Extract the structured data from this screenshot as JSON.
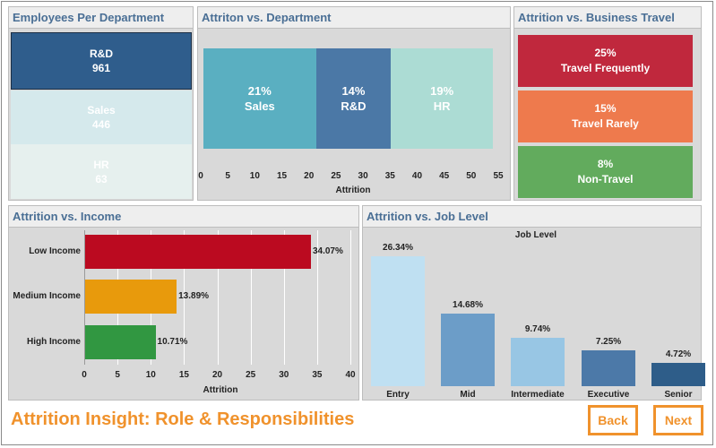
{
  "footer": {
    "title": "Attrition Insight: Role & Responsibilities",
    "back_label": "Back",
    "next_label": "Next"
  },
  "employees_panel": {
    "title": "Employees Per Department",
    "tiles": [
      {
        "name": "R&D",
        "value": "961",
        "color": "#2f5d8c"
      },
      {
        "name": "Sales",
        "value": "446",
        "color": "#d5e9ec"
      },
      {
        "name": "HR",
        "value": "63",
        "color": "#e6f0ee"
      }
    ]
  },
  "chart_data": [
    {
      "type": "treemap",
      "title": "Attriton vs. Department",
      "xlabel": "Attrition",
      "ticks": [
        0,
        5,
        10,
        15,
        20,
        25,
        30,
        35,
        40,
        45,
        50,
        55
      ],
      "xlim": [
        0,
        55
      ],
      "segments": [
        {
          "pct": "21%",
          "label": "Sales",
          "value": 21,
          "color": "#5aafc1"
        },
        {
          "pct": "14%",
          "label": "R&D",
          "value": 14,
          "color": "#4b78a6"
        },
        {
          "pct": "19%",
          "label": "HR",
          "value": 19,
          "color": "#acdcd4"
        }
      ]
    },
    {
      "type": "table",
      "title": "Attrition vs. Business Travel",
      "rows": [
        {
          "pct": "25%",
          "label": "Travel Frequently",
          "color": "#c0283d"
        },
        {
          "pct": "15%",
          "label": "Travel Rarely",
          "color": "#ee7a4d"
        },
        {
          "pct": "8%",
          "label": "Non-Travel",
          "color": "#62ab5d"
        }
      ]
    },
    {
      "type": "bar",
      "orientation": "horizontal",
      "title": "Attrition vs. Income",
      "xlabel": "Attrition",
      "xlim": [
        0,
        40
      ],
      "ticks": [
        0,
        5,
        10,
        15,
        20,
        25,
        30,
        35,
        40
      ],
      "categories": [
        "Low Income",
        "Medium Income",
        "High Income"
      ],
      "values": [
        34.07,
        13.89,
        10.71
      ],
      "labels": [
        "34.07%",
        "13.89%",
        "10.71%"
      ],
      "colors": [
        "#bb0a20",
        "#e89a0c",
        "#319741"
      ]
    },
    {
      "type": "bar",
      "title": "Attrition vs. Job Level",
      "subtitle": "Job Level",
      "ylim": [
        0,
        30
      ],
      "categories": [
        "Entry",
        "Mid",
        "Intermediate",
        "Executive",
        "Senior"
      ],
      "values": [
        26.34,
        14.68,
        9.74,
        7.25,
        4.72
      ],
      "labels": [
        "26.34%",
        "14.68%",
        "9.74%",
        "7.25%",
        "4.72%"
      ],
      "colors": [
        "#bfe0f2",
        "#6c9dc8",
        "#98c6e4",
        "#4c79a8",
        "#2e5d89"
      ]
    }
  ]
}
